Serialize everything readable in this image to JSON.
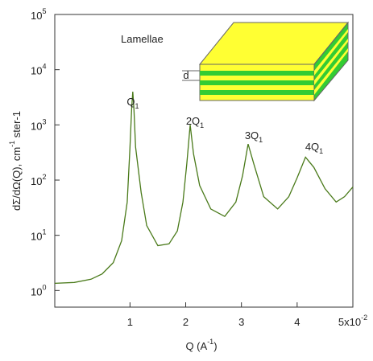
{
  "chart_data": {
    "type": "line",
    "x_label": {
      "text": "Q (A",
      "exp": "-1",
      "end": ")"
    },
    "y_label": {
      "text": "dΣ/dΩ(Q), cm",
      "exp": "-1",
      "end": " ster-1"
    },
    "annotations": [
      {
        "text": "Lamellae"
      },
      {
        "text": "Q",
        "sub": "1"
      },
      {
        "text": "2Q",
        "sub": "1"
      },
      {
        "text": "3Q",
        "sub": "1"
      },
      {
        "text": "4Q",
        "sub": "1"
      },
      {
        "text": "d"
      }
    ],
    "log_y": true,
    "xlim": [
      -0.35,
      5
    ],
    "ylim": [
      0.5,
      100000
    ],
    "xticks": [
      1,
      2,
      3,
      4,
      {
        "value": 5,
        "label": "5x10",
        "exp": "-2"
      }
    ],
    "yticks": [
      {
        "value": 1,
        "label": "10",
        "exp": "0"
      },
      {
        "value": 10,
        "label": "10",
        "exp": "1"
      },
      {
        "value": 100,
        "label": "10",
        "exp": "2"
      },
      {
        "value": 1000,
        "label": "10",
        "exp": "3"
      },
      {
        "value": 10000,
        "label": "10",
        "exp": "4"
      },
      {
        "value": 100000,
        "label": "10",
        "exp": "5"
      }
    ],
    "series": [
      {
        "color": "#4a7a1a",
        "x": [
          -0.35,
          0,
          0.3,
          0.5,
          0.7,
          0.85,
          0.95,
          1.0,
          1.03,
          1.05,
          1.07,
          1.1,
          1.2,
          1.3,
          1.5,
          1.7,
          1.85,
          1.95,
          2.02,
          2.08,
          2.14,
          2.25,
          2.45,
          2.7,
          2.9,
          3.02,
          3.12,
          3.22,
          3.4,
          3.65,
          3.85,
          4.0,
          4.15,
          4.3,
          4.5,
          4.7,
          4.85,
          5.0
        ],
        "values": [
          1.35,
          1.4,
          1.6,
          2.0,
          3.2,
          8,
          40,
          400,
          2000,
          4000,
          2000,
          400,
          60,
          15,
          6.5,
          7,
          12,
          40,
          200,
          1000,
          300,
          80,
          30,
          22,
          40,
          120,
          450,
          200,
          50,
          30,
          50,
          110,
          260,
          170,
          70,
          40,
          50,
          75
        ]
      }
    ]
  }
}
